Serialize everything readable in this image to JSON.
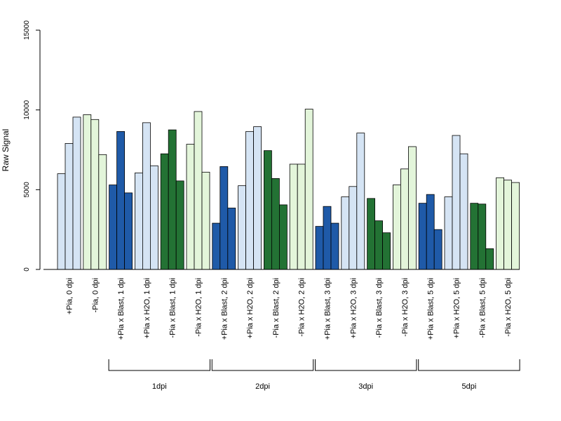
{
  "chart_data": {
    "type": "bar",
    "ylabel": "Raw Signal",
    "xlabel": "",
    "ylim": [
      0,
      15000
    ],
    "yticks": [
      0,
      5000,
      10000,
      15000
    ],
    "ytick_labels": [
      "0",
      "5000",
      "10000",
      "15000"
    ],
    "grid": false,
    "colors": {
      "light_blue": "#d5e4f4",
      "dark_blue": "#1f5aa8",
      "light_green": "#e3f5da",
      "dark_green": "#237234"
    },
    "categories": [
      "+Pia, 0 dpi",
      "-Pia, 0 dpi",
      "+Pia x Blast, 1 dpi",
      "+Pia x H2O, 1 dpi",
      "-Pia x Blast, 1 dpi",
      "-Pia x H2O, 1 dpi",
      "+Pia x Blast, 2 dpi",
      "+Pia x H2O, 2 dpi",
      "-Pia x Blast, 2 dpi",
      "-Pia x H2O, 2 dpi",
      "+Pia x Blast, 3 dpi",
      "+Pia x H2O, 3 dpi",
      "-Pia x Blast, 3 dpi",
      "-Pia x H2O, 3 dpi",
      "+Pia x Blast, 5 dpi",
      "+Pia x H2O, 5 dpi",
      "-Pia x Blast, 5 dpi",
      "-Pia x H2O, 5 dpi"
    ],
    "category_colors": [
      "light_blue",
      "light_green",
      "dark_blue",
      "light_blue",
      "dark_green",
      "light_green",
      "dark_blue",
      "light_blue",
      "dark_green",
      "light_green",
      "dark_blue",
      "light_blue",
      "dark_green",
      "light_green",
      "dark_blue",
      "light_blue",
      "dark_green",
      "light_green"
    ],
    "values": [
      [
        6000,
        7900,
        9550
      ],
      [
        9700,
        9400,
        7200
      ],
      [
        5300,
        8650,
        4800
      ],
      [
        6050,
        9200,
        6500
      ],
      [
        7250,
        8750,
        5550
      ],
      [
        7850,
        9900,
        6100
      ],
      [
        2900,
        6450,
        3850
      ],
      [
        5250,
        8650,
        8950
      ],
      [
        7450,
        5700,
        4050
      ],
      [
        6600,
        6600,
        10050
      ],
      [
        2700,
        3950,
        2900
      ],
      [
        4550,
        5200,
        8550
      ],
      [
        4450,
        3050,
        2300
      ],
      [
        5300,
        6300,
        7700
      ],
      [
        4150,
        4700,
        2500
      ],
      [
        4550,
        8400,
        7250
      ],
      [
        4150,
        4100,
        1300
      ],
      [
        5750,
        5600,
        5450
      ]
    ],
    "groups": [
      {
        "label": "1dpi",
        "start": 2,
        "end": 5
      },
      {
        "label": "2dpi",
        "start": 6,
        "end": 9
      },
      {
        "label": "3dpi",
        "start": 10,
        "end": 13
      },
      {
        "label": "5dpi",
        "start": 14,
        "end": 17
      }
    ]
  }
}
